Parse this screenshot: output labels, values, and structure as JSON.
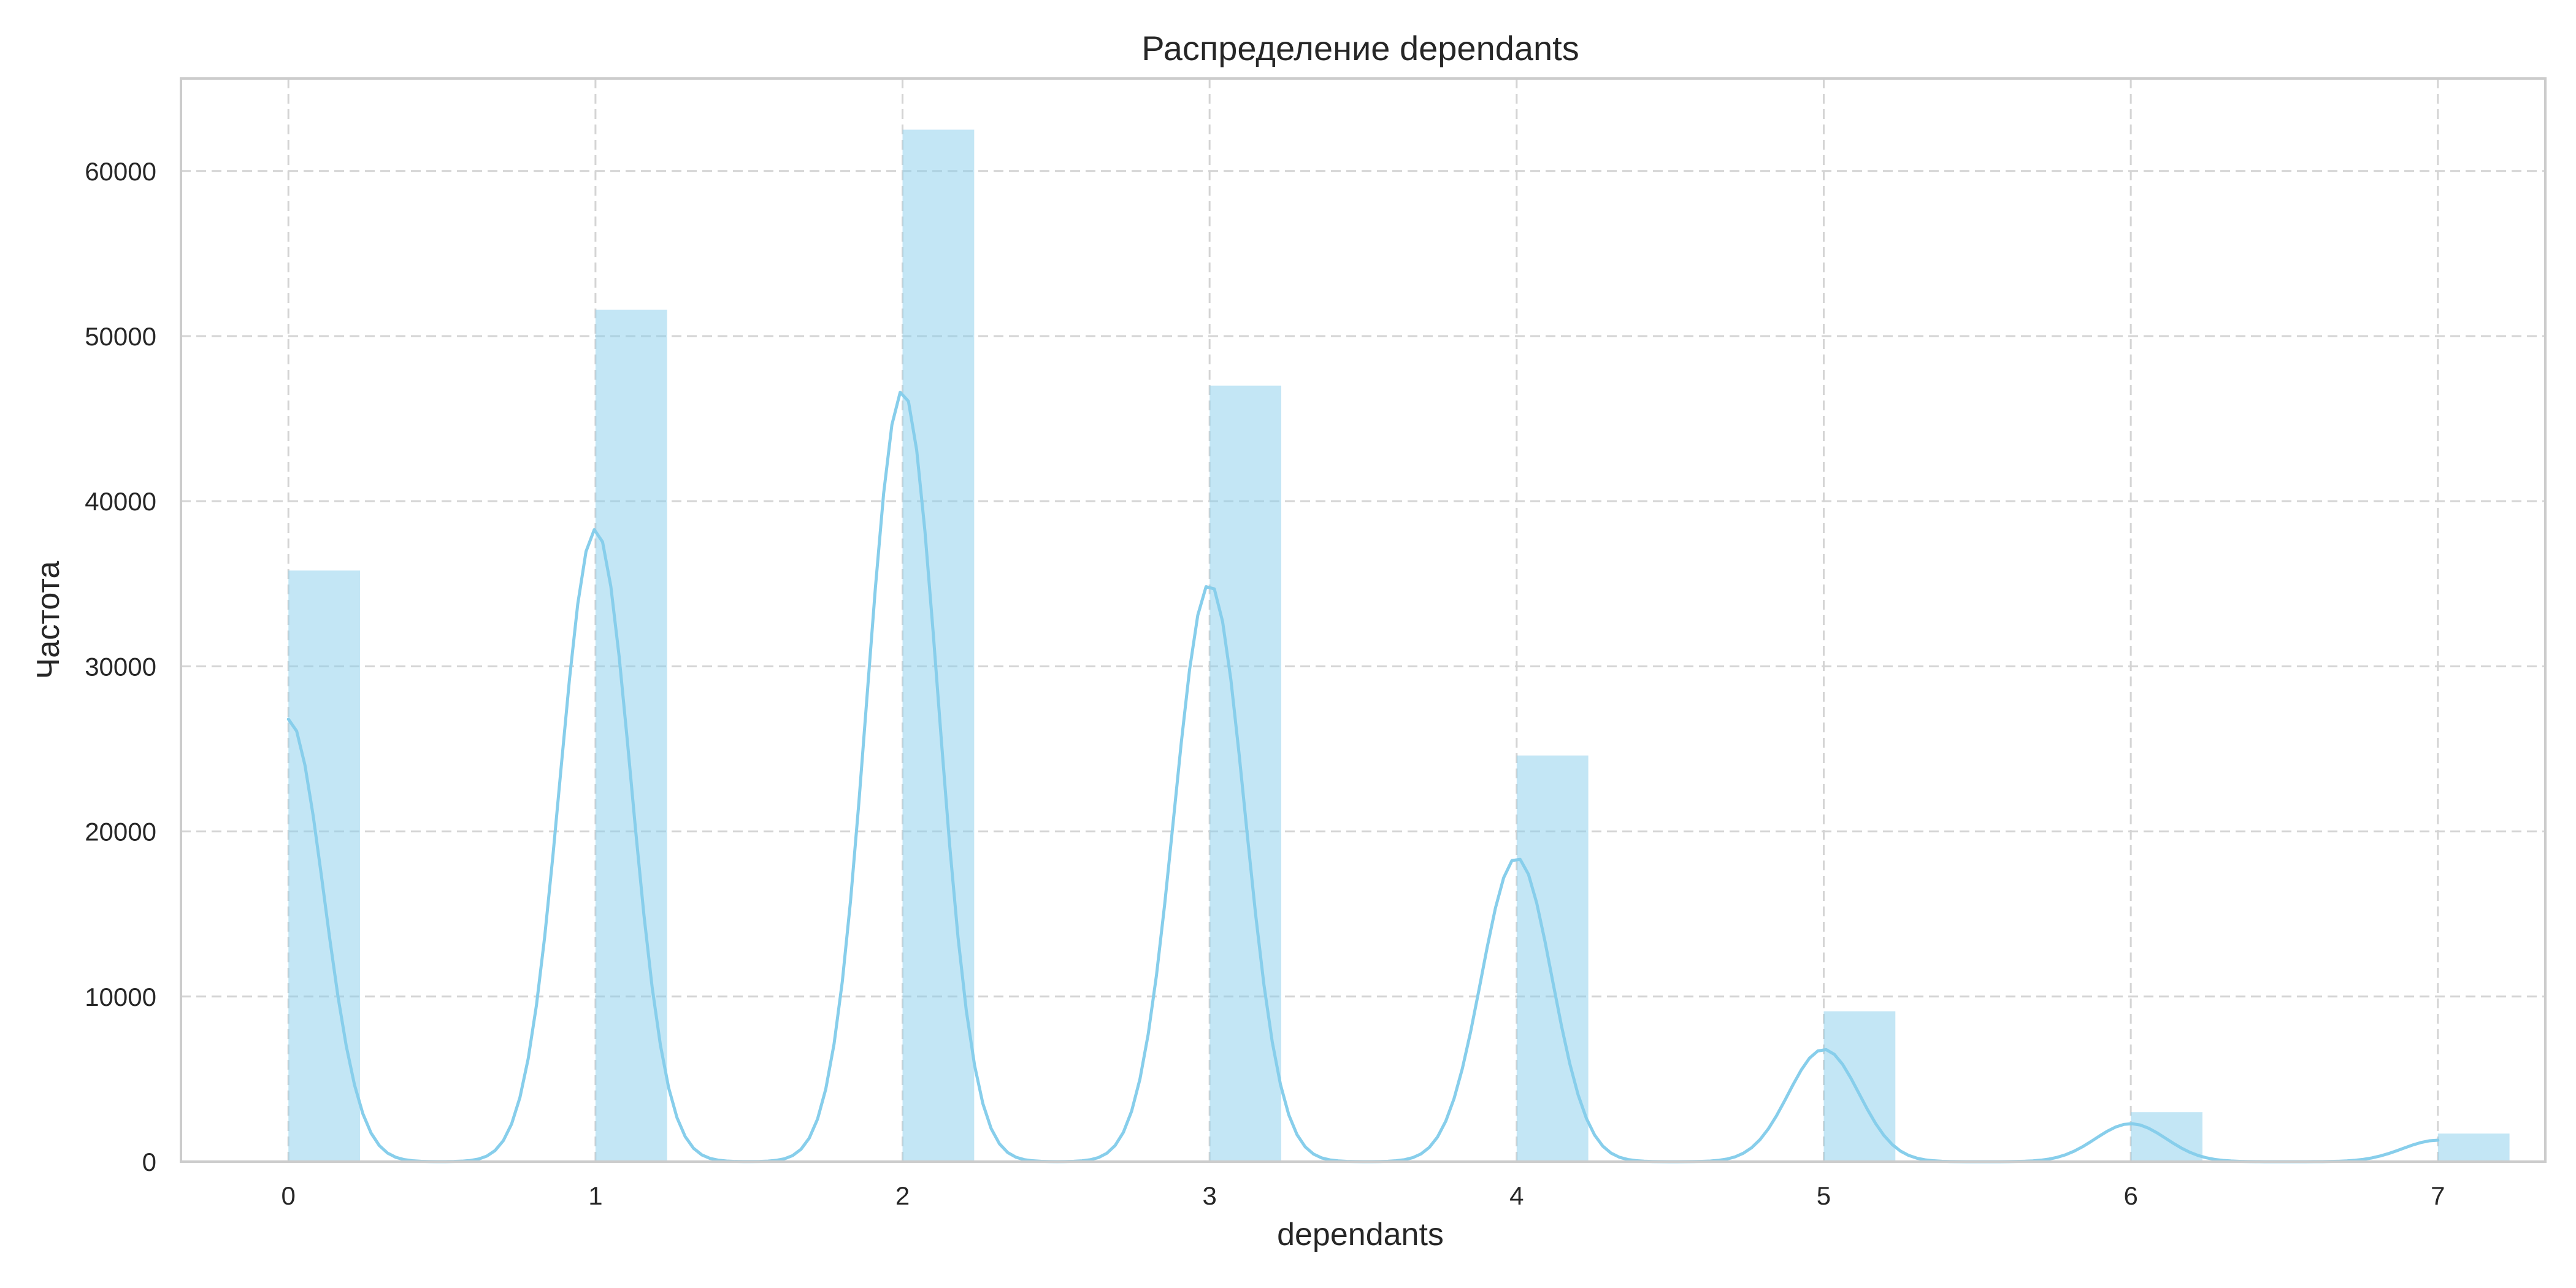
{
  "chart_data": {
    "type": "bar",
    "title": "Распределение dependants",
    "xlabel": "dependants",
    "ylabel": "Частота",
    "x": [
      0,
      1,
      2,
      3,
      4,
      5,
      6,
      7
    ],
    "values": [
      35800,
      51600,
      62500,
      47000,
      24600,
      9100,
      3000,
      1700
    ],
    "bar_width": 0.2333,
    "kde_overlay": true,
    "kde_peaks": [
      26800,
      38300,
      46700,
      35000,
      18400,
      6800,
      2300,
      1300
    ],
    "kde_bandwidth": 0.115,
    "xlim": [
      -0.35,
      7.35
    ],
    "ylim": [
      0,
      65600
    ],
    "xticks": [
      "0",
      "1",
      "2",
      "3",
      "4",
      "5",
      "6",
      "7"
    ],
    "yticks": [
      "0",
      "10000",
      "20000",
      "30000",
      "40000",
      "50000",
      "60000"
    ],
    "grid": true,
    "colors": {
      "bars": "#87ceeb",
      "kde": "#87ceeb",
      "grid": "#d4d4d4",
      "frame": "#cccccc"
    }
  }
}
